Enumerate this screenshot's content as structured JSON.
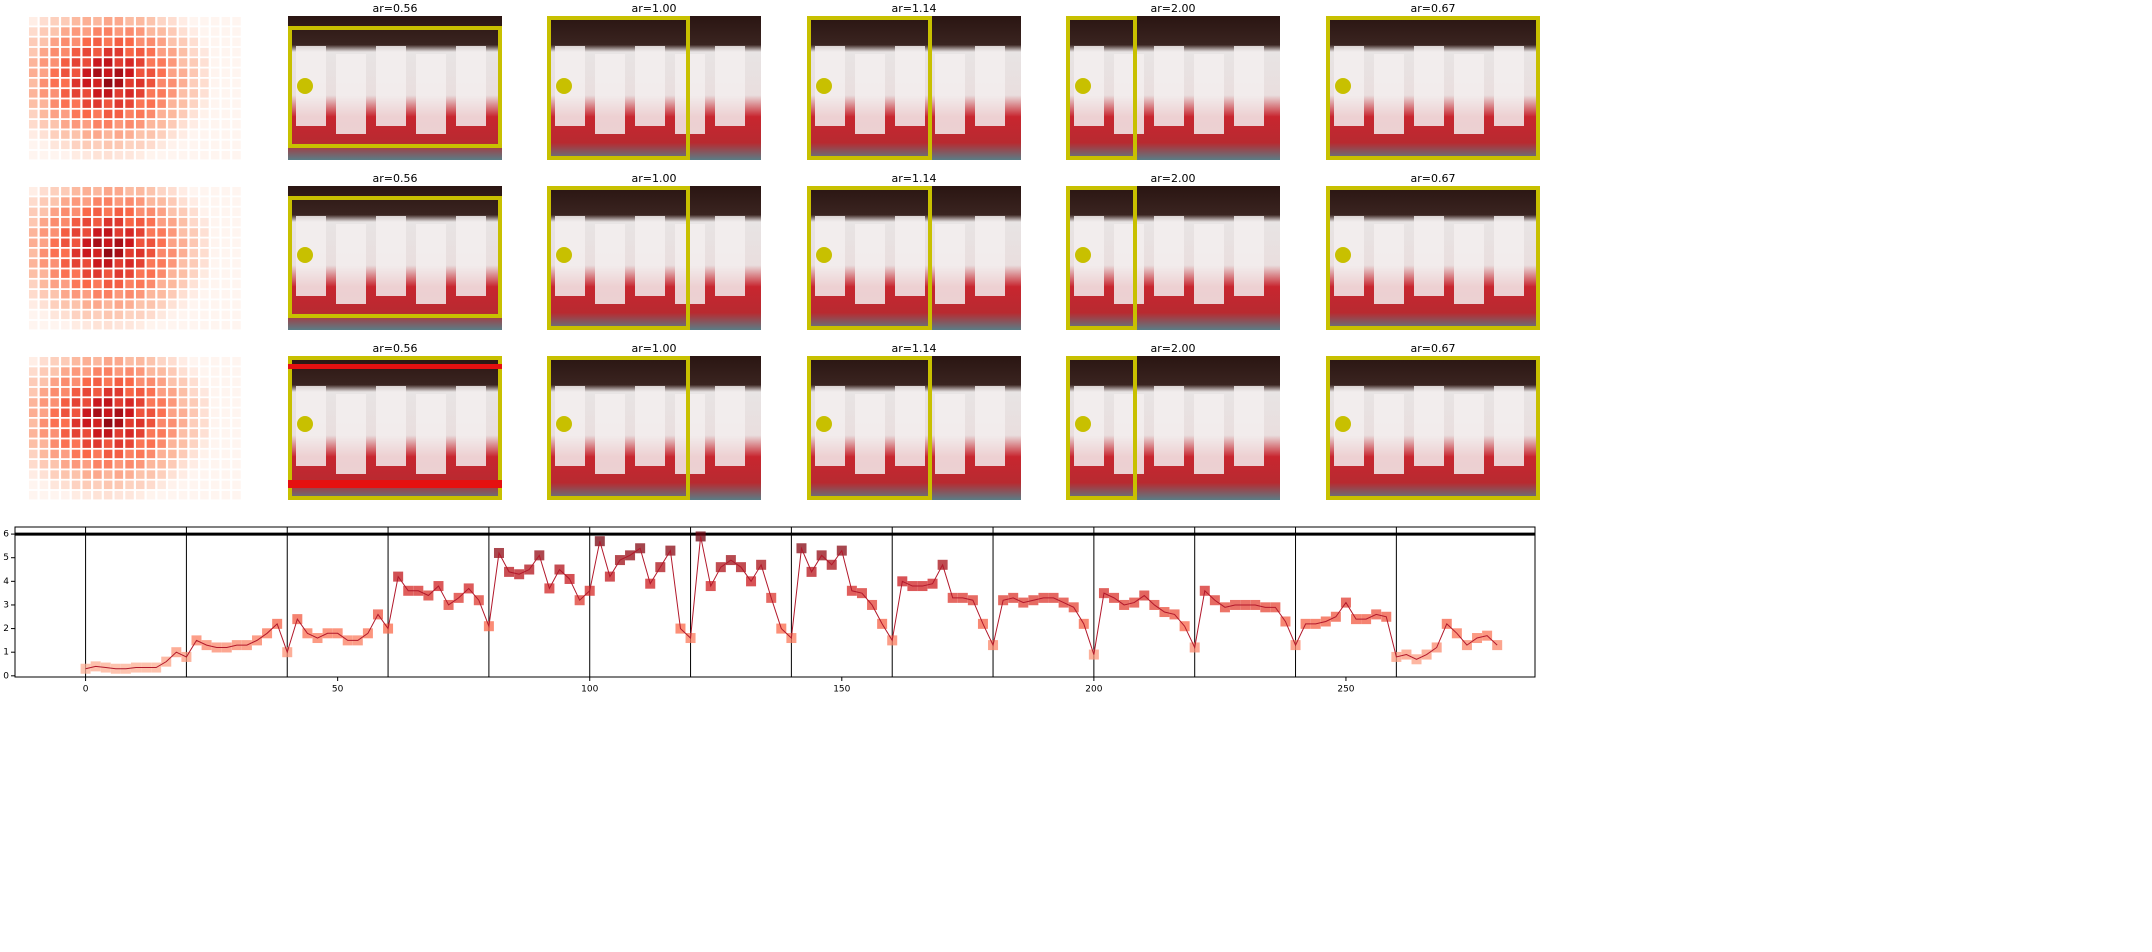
{
  "rows": [
    {
      "titles": [
        "ar=0.56",
        "ar=1.00",
        "ar=1.14",
        "ar=2.00",
        "ar=0.67"
      ]
    },
    {
      "titles": [
        "ar=0.56",
        "ar=1.00",
        "ar=1.14",
        "ar=2.00",
        "ar=0.67"
      ]
    },
    {
      "titles": [
        "ar=0.56",
        "ar=1.00",
        "ar=1.14",
        "ar=2.00",
        "ar=0.67"
      ]
    }
  ],
  "chart_data": {
    "type": "line",
    "color": "#b2182b",
    "x": [
      0,
      2,
      4,
      6,
      8,
      10,
      12,
      14,
      16,
      18,
      20,
      22,
      24,
      26,
      28,
      30,
      32,
      34,
      36,
      38,
      40,
      42,
      44,
      46,
      48,
      50,
      52,
      54,
      56,
      58,
      60,
      62,
      64,
      66,
      68,
      70,
      72,
      74,
      76,
      78,
      80,
      82,
      84,
      86,
      88,
      90,
      92,
      94,
      96,
      98,
      100,
      102,
      104,
      106,
      108,
      110,
      112,
      114,
      116,
      118,
      120,
      122,
      124,
      126,
      128,
      130,
      132,
      134,
      136,
      138,
      140,
      142,
      144,
      146,
      148,
      150,
      152,
      154,
      156,
      158,
      160,
      162,
      164,
      166,
      168,
      170,
      172,
      174,
      176,
      178,
      180,
      182,
      184,
      186,
      188,
      190,
      192,
      194,
      196,
      198,
      200,
      202,
      204,
      206,
      208,
      210,
      212,
      214,
      216,
      218,
      220,
      222,
      224,
      226,
      228,
      230,
      232,
      234,
      236,
      238,
      240,
      242,
      244,
      246,
      248,
      250,
      252,
      254,
      256,
      258,
      260,
      262,
      264,
      266,
      268,
      270,
      272,
      274,
      276,
      278,
      280
    ],
    "values": [
      0.3,
      0.4,
      0.35,
      0.3,
      0.3,
      0.35,
      0.35,
      0.35,
      0.6,
      1.0,
      0.8,
      1.5,
      1.3,
      1.2,
      1.2,
      1.3,
      1.3,
      1.5,
      1.8,
      2.2,
      1.0,
      2.4,
      1.8,
      1.6,
      1.8,
      1.8,
      1.5,
      1.5,
      1.8,
      2.6,
      2.0,
      4.2,
      3.6,
      3.6,
      3.4,
      3.8,
      3.0,
      3.3,
      3.7,
      3.2,
      2.1,
      5.2,
      4.4,
      4.3,
      4.5,
      5.1,
      3.7,
      4.5,
      4.1,
      3.2,
      3.6,
      5.7,
      4.2,
      4.9,
      5.1,
      5.4,
      3.9,
      4.6,
      5.3,
      2.0,
      1.6,
      5.9,
      3.8,
      4.6,
      4.9,
      4.6,
      4.0,
      4.7,
      3.3,
      2.0,
      1.6,
      5.4,
      4.4,
      5.1,
      4.7,
      5.3,
      3.6,
      3.5,
      3.0,
      2.2,
      1.5,
      4.0,
      3.8,
      3.8,
      3.9,
      4.7,
      3.3,
      3.3,
      3.2,
      2.2,
      1.3,
      3.2,
      3.3,
      3.1,
      3.2,
      3.3,
      3.3,
      3.1,
      2.9,
      2.2,
      0.9,
      3.5,
      3.3,
      3.0,
      3.1,
      3.4,
      3.0,
      2.7,
      2.6,
      2.1,
      1.2,
      3.6,
      3.2,
      2.9,
      3.0,
      3.0,
      3.0,
      2.9,
      2.9,
      2.3,
      1.3,
      2.2,
      2.2,
      2.3,
      2.5,
      3.1,
      2.4,
      2.4,
      2.6,
      2.5,
      0.8,
      0.9,
      0.7,
      0.9,
      1.2,
      2.2,
      1.8,
      1.3,
      1.6,
      1.7,
      1.3
    ],
    "xlim": [
      -14,
      287.5
    ],
    "ylim": [
      -0.05,
      6.3
    ],
    "xticks": [
      0,
      50,
      100,
      150,
      200,
      250
    ],
    "yticks": [
      0,
      1,
      2,
      3,
      4,
      5,
      6
    ],
    "vlines": [
      0,
      20,
      40,
      60,
      80,
      100,
      120,
      140,
      160,
      180,
      200,
      220,
      240,
      260
    ],
    "hline": 6
  }
}
